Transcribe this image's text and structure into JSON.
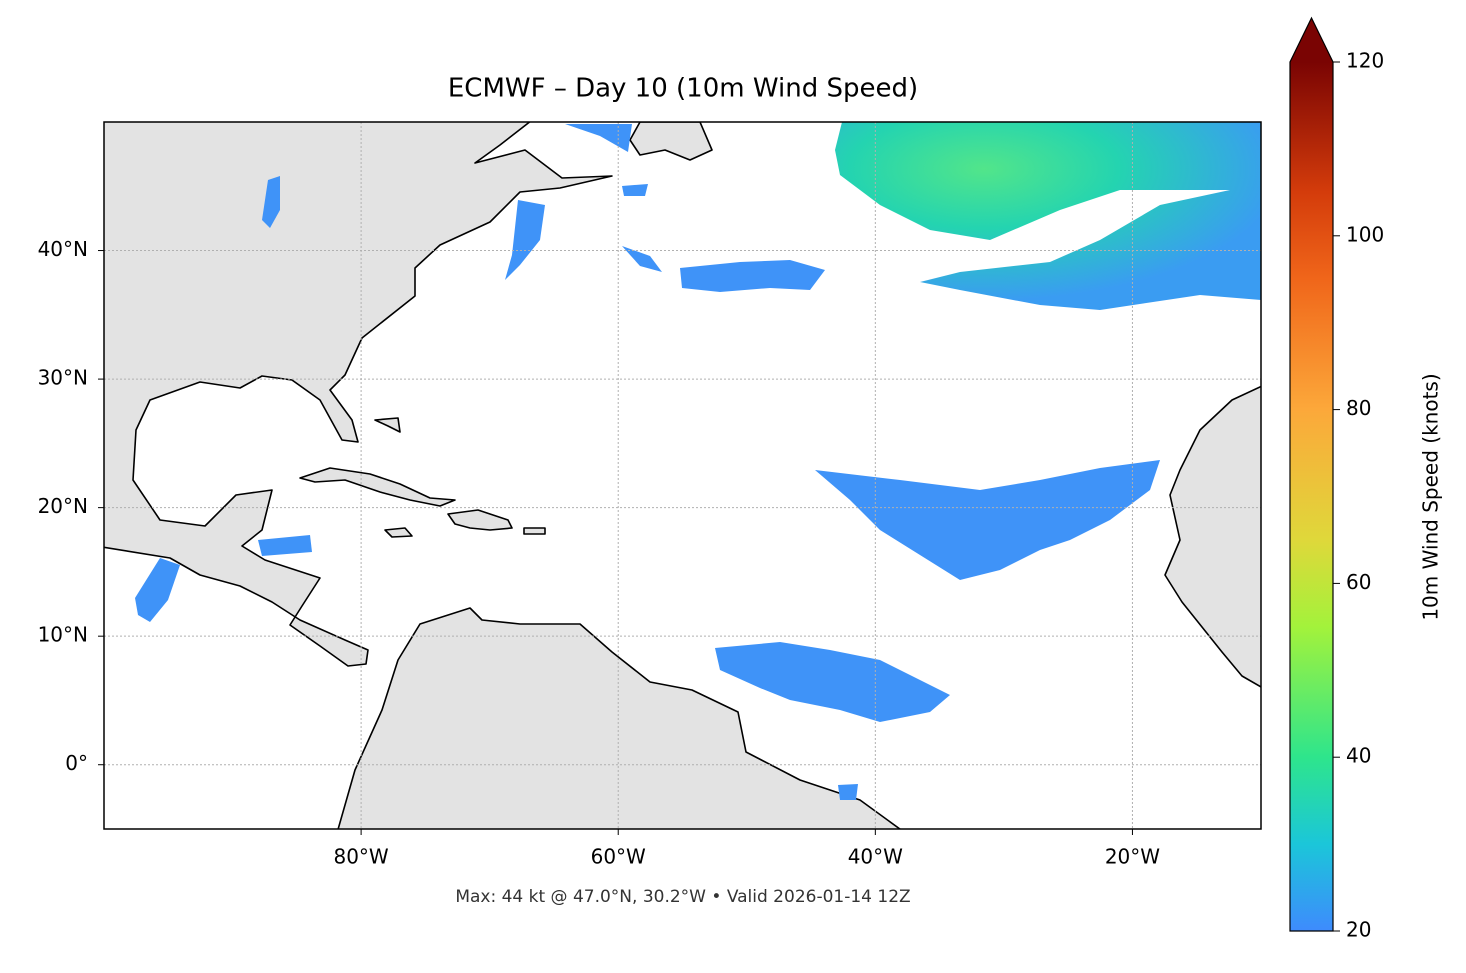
{
  "title": "ECMWF – Day 10 (10m Wind Speed)",
  "map": {
    "lon_lim": [
      -100,
      -10
    ],
    "lat_lim": [
      -5,
      50
    ],
    "lon_ticks": [
      {
        "value": -80,
        "label": "80°W"
      },
      {
        "value": -60,
        "label": "60°W"
      },
      {
        "value": -40,
        "label": "40°W"
      },
      {
        "value": -20,
        "label": "20°W"
      }
    ],
    "lat_ticks": [
      {
        "value": 0,
        "label": "0°"
      },
      {
        "value": 10,
        "label": "10°N"
      },
      {
        "value": 20,
        "label": "20°N"
      },
      {
        "value": 30,
        "label": "30°N"
      },
      {
        "value": 40,
        "label": "40°N"
      }
    ],
    "grid": true
  },
  "colorbar": {
    "label": "10m Wind Speed (knots)",
    "lim": [
      20,
      120
    ],
    "ticks": [
      20,
      40,
      60,
      80,
      100,
      120
    ]
  },
  "footnote": "Max: 44 kt @ 47.0°N, 30.2°W • Valid 2026-01-14 12Z"
}
